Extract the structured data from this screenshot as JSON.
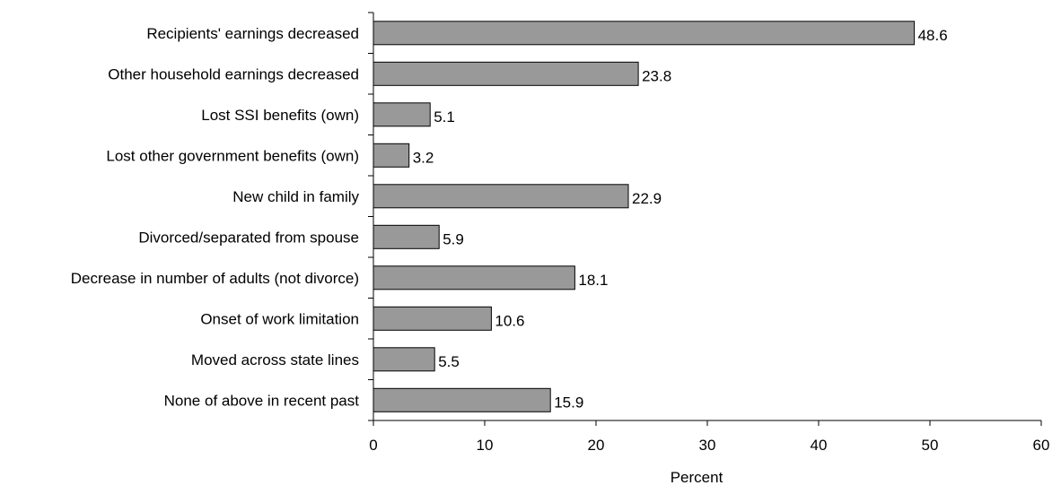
{
  "chart_data": {
    "type": "bar",
    "orientation": "horizontal",
    "categories": [
      "Recipients' earnings decreased",
      "Other household earnings decreased",
      "Lost SSI benefits (own)",
      "Lost other government benefits (own)",
      "New child in family",
      "Divorced/separated from spouse",
      "Decrease in number of adults (not divorce)",
      "Onset of work limitation",
      "Moved across state lines",
      "None of above in recent past"
    ],
    "values": [
      48.6,
      23.8,
      5.1,
      3.2,
      22.9,
      5.9,
      18.1,
      10.6,
      5.5,
      15.9
    ],
    "value_labels": [
      "48.6",
      "23.8",
      "5.1",
      "3.2",
      "22.9",
      "5.9",
      "18.1",
      "10.6",
      "5.5",
      "15.9"
    ],
    "title": "",
    "xlabel": "Percent",
    "ylabel": "",
    "xlim": [
      0,
      60
    ],
    "x_ticks": [
      0,
      10,
      20,
      30,
      40,
      50,
      60
    ],
    "x_tick_labels": [
      "0",
      "10",
      "20",
      "30",
      "40",
      "50",
      "60"
    ],
    "grid": false,
    "legend": "none",
    "colors": {
      "bar_fill": "#999999",
      "bar_stroke": "#000000",
      "axis": "#000000",
      "text": "#000000"
    }
  }
}
